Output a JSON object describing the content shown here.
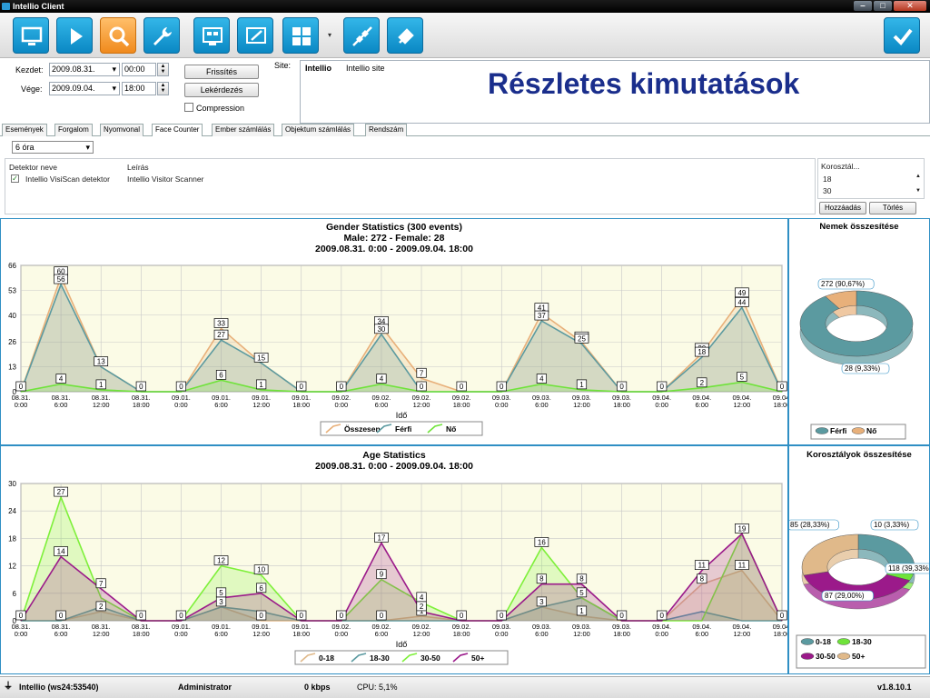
{
  "window": {
    "title": "Intellio Client",
    "buttons": [
      "‒",
      "□",
      "✕"
    ]
  },
  "toolbar": {
    "buttons": [
      {
        "icon": "monitor-icon"
      },
      {
        "icon": "play-icon"
      },
      {
        "icon": "search-icon",
        "active": true
      },
      {
        "icon": "wrench-icon"
      },
      {
        "icon": "camera-grid-icon"
      },
      {
        "icon": "picture-edit-icon"
      },
      {
        "icon": "layout-grid-icon"
      },
      {
        "icon": "disconnect-icon"
      },
      {
        "icon": "connect-icon"
      },
      {
        "icon": "checkmark-icon"
      }
    ]
  },
  "filters": {
    "start_label": "Kezdet:",
    "start_date": "2009.08.31.",
    "start_time": "00:00",
    "end_label": "Vége:",
    "end_date": "2009.09.04.",
    "end_time": "18:00",
    "refresh_label": "Frissítés",
    "query_label": "Lekérdezés",
    "compression_label": "Compression",
    "compression_checked": false,
    "site_label": "Site:",
    "site_name": "Intellio",
    "site_desc": "Intellio site"
  },
  "overlay_title": "Részletes kimutatások",
  "tabs": [
    {
      "label": "Események"
    },
    {
      "label": "Forgalom"
    },
    {
      "label": "Nyomvonal"
    },
    {
      "label": "Face Counter",
      "selected": true
    },
    {
      "label": "Ember számlálás"
    },
    {
      "label": "Objektum számlálás"
    },
    {
      "label": "Rendszám"
    }
  ],
  "interval_select": "6 óra",
  "detectors": {
    "col_name": "Detektor neve",
    "col_desc": "Leírás",
    "rows": [
      {
        "name": "Intellio VisiScan detektor",
        "desc": "Intellio Visitor Scanner",
        "checked": true
      }
    ]
  },
  "age_groups": {
    "header": "Korosztál...",
    "values": [
      "18",
      "30"
    ],
    "add_label": "Hozzáadás",
    "delete_label": "Törlés"
  },
  "gender_chart": {
    "title": "Gender Statistics (300 events)",
    "subtitle": "Male: 272 - Female: 28",
    "range": "2009.08.31. 0:00 - 2009.09.04. 18:00"
  },
  "age_chart": {
    "title": "Age Statistics",
    "range": "2009.08.31. 0:00 - 2009.09.04. 18:00"
  },
  "gender_summary": {
    "title": "Nemek összesítése"
  },
  "age_summary": {
    "title": "Korosztályok összesítése"
  },
  "chart_data": [
    {
      "type": "area",
      "title": "Gender Statistics (300 events)",
      "xlabel": "Idő",
      "ylabel": "",
      "ylim": [
        0,
        66
      ],
      "yticks": [
        0,
        13,
        26,
        40,
        53,
        66
      ],
      "categories": [
        "08.31.\n0:00",
        "08.31.\n6:00",
        "08.31.\n12:00",
        "08.31.\n18:00",
        "09.01.\n0:00",
        "09.01.\n6:00",
        "09.01.\n12:00",
        "09.01.\n18:00",
        "09.02.\n0:00",
        "09.02.\n6:00",
        "09.02.\n12:00",
        "09.02.\n18:00",
        "09.03.\n0:00",
        "09.03.\n6:00",
        "09.03.\n12:00",
        "09.03.\n18:00",
        "09.04.\n0:00",
        "09.04.\n6:00",
        "09.04.\n12:00",
        "09.04.\n18:00"
      ],
      "series": [
        {
          "name": "Összesen",
          "color": "#e8b07a",
          "values": [
            0,
            60,
            13,
            0,
            0,
            33,
            15,
            0,
            0,
            34,
            7,
            0,
            0,
            41,
            26,
            0,
            0,
            20,
            49,
            0
          ],
          "labeled": [
            false,
            true,
            false,
            false,
            false,
            true,
            false,
            false,
            false,
            true,
            true,
            false,
            false,
            true,
            true,
            false,
            false,
            true,
            true,
            false
          ]
        },
        {
          "name": "Férfi",
          "color": "#5b9aa0",
          "values": [
            0,
            56,
            13,
            0,
            0,
            27,
            15,
            0,
            0,
            30,
            0,
            0,
            0,
            37,
            25,
            0,
            0,
            18,
            44,
            0
          ],
          "labeled": [
            true,
            true,
            true,
            true,
            true,
            true,
            true,
            true,
            true,
            true,
            true,
            true,
            true,
            true,
            true,
            true,
            true,
            true,
            true,
            true
          ]
        },
        {
          "name": "Nő",
          "color": "#6fe33a",
          "values": [
            0,
            4,
            1,
            0,
            0,
            6,
            1,
            0,
            0,
            4,
            0,
            0,
            0,
            4,
            1,
            0,
            0,
            2,
            5,
            0
          ],
          "labeled": [
            false,
            true,
            true,
            false,
            false,
            true,
            true,
            false,
            false,
            true,
            false,
            false,
            false,
            true,
            true,
            false,
            false,
            true,
            true,
            false
          ]
        }
      ],
      "legend": "bottom"
    },
    {
      "type": "area",
      "title": "Age Statistics",
      "xlabel": "Idő",
      "ylabel": "",
      "ylim": [
        0,
        30
      ],
      "yticks": [
        0,
        6,
        12,
        18,
        24,
        30
      ],
      "categories": [
        "08.31.\n0:00",
        "08.31.\n6:00",
        "08.31.\n12:00",
        "08.31.\n18:00",
        "09.01.\n0:00",
        "09.01.\n6:00",
        "09.01.\n12:00",
        "09.01.\n18:00",
        "09.02.\n0:00",
        "09.02.\n6:00",
        "09.02.\n12:00",
        "09.02.\n18:00",
        "09.03.\n0:00",
        "09.03.\n6:00",
        "09.03.\n12:00",
        "09.03.\n18:00",
        "09.04.\n0:00",
        "09.04.\n6:00",
        "09.04.\n12:00",
        "09.04.\n18:00"
      ],
      "series": [
        {
          "name": "0-18",
          "color": "#e0b98a",
          "values": [
            0,
            0,
            2,
            0,
            0,
            3,
            0,
            0,
            0,
            0,
            1,
            0,
            0,
            3,
            1,
            0,
            0,
            8,
            11,
            0
          ],
          "labeled": [
            true,
            true,
            true,
            true,
            true,
            true,
            true,
            true,
            true,
            true,
            true,
            true,
            true,
            true,
            true,
            true,
            true,
            true,
            true,
            true
          ]
        },
        {
          "name": "18-30",
          "color": "#5b9aa0",
          "values": [
            0,
            0,
            3,
            0,
            0,
            3,
            2,
            0,
            0,
            0,
            0,
            0,
            0,
            3,
            5,
            0,
            0,
            2,
            0,
            0
          ],
          "labeled": [
            false,
            false,
            false,
            false,
            false,
            false,
            false,
            false,
            false,
            false,
            false,
            false,
            false,
            false,
            false,
            false,
            false,
            false,
            false,
            false
          ]
        },
        {
          "name": "30-50",
          "color": "#7ef03a",
          "values": [
            0,
            27,
            5,
            0,
            0,
            12,
            10,
            0,
            0,
            9,
            4,
            0,
            0,
            16,
            5,
            0,
            0,
            0,
            19,
            0
          ],
          "labeled": [
            false,
            true,
            false,
            false,
            false,
            true,
            true,
            false,
            false,
            true,
            true,
            false,
            false,
            true,
            true,
            false,
            false,
            false,
            true,
            false
          ]
        },
        {
          "name": "50+",
          "color": "#9b1a8a",
          "values": [
            0,
            14,
            7,
            0,
            0,
            5,
            6,
            0,
            0,
            17,
            2,
            0,
            0,
            8,
            8,
            0,
            0,
            11,
            19,
            0
          ],
          "labeled": [
            false,
            true,
            true,
            false,
            false,
            true,
            true,
            false,
            false,
            true,
            true,
            false,
            false,
            true,
            true,
            false,
            false,
            true,
            false,
            false
          ]
        }
      ],
      "extra_labels": [
        "19",
        "14",
        "5",
        "6",
        "9",
        "4",
        "16",
        "12",
        "3",
        "2",
        "1",
        "0",
        "0"
      ],
      "legend": "bottom"
    },
    {
      "type": "pie",
      "title": "Nemek összesítése",
      "slices": [
        {
          "name": "Férfi",
          "value": 272,
          "label": "272 (90,67%)",
          "color": "#5b9aa0"
        },
        {
          "name": "Nő",
          "value": 28,
          "label": "28 (9,33%)",
          "color": "#e8b07a"
        }
      ],
      "legend": "bottom"
    },
    {
      "type": "pie",
      "title": "Korosztályok összesítése",
      "slices": [
        {
          "name": "0-18",
          "value": 85,
          "label": "85 (28,33%)",
          "color": "#5b9aa0"
        },
        {
          "name": "18-30",
          "value": 10,
          "label": "10 (3,33%)",
          "color": "#6fe33a"
        },
        {
          "name": "30-50",
          "value": 118,
          "label": "118 (39,33%)",
          "color": "#9b1a8a"
        },
        {
          "name": "50+",
          "value": 87,
          "label": "87 (29,00%)",
          "color": "#e0b98a"
        }
      ],
      "legend": "bottom"
    }
  ],
  "legend_labels": {
    "gender": [
      "Összesen",
      "Férfi",
      "Nő"
    ],
    "gender_pie": [
      "Férfi",
      "Nő"
    ],
    "age": [
      "0-18",
      "18-30",
      "30-50",
      "50+"
    ]
  },
  "statusbar": {
    "connection": "Intellio (ws24:53540)",
    "user": "Administrator",
    "bandwidth": "0 kbps",
    "cpu": "CPU: 5,1%",
    "version": "v1.8.10.1"
  }
}
